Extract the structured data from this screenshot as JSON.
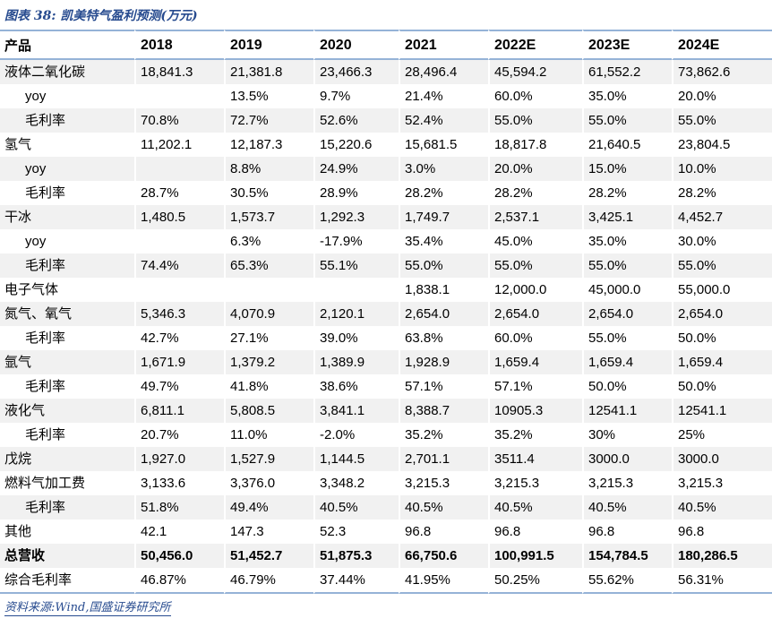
{
  "title": "图表 38: 凯美特气盈利预测(万元)",
  "table": {
    "columns": [
      "产品",
      "2018",
      "2019",
      "2020",
      "2021",
      "2022E",
      "2023E",
      "2024E"
    ],
    "rows": [
      {
        "label": "液体二氧化碳",
        "indent": 0,
        "bold": false,
        "values": [
          "18,841.3",
          "21,381.8",
          "23,466.3",
          "28,496.4",
          "45,594.2",
          "61,552.2",
          "73,862.6"
        ]
      },
      {
        "label": "yoy",
        "indent": 1,
        "bold": false,
        "values": [
          "",
          "13.5%",
          "9.7%",
          "21.4%",
          "60.0%",
          "35.0%",
          "20.0%"
        ]
      },
      {
        "label": "毛利率",
        "indent": 1,
        "bold": false,
        "values": [
          "70.8%",
          "72.7%",
          "52.6%",
          "52.4%",
          "55.0%",
          "55.0%",
          "55.0%"
        ]
      },
      {
        "label": "氢气",
        "indent": 0,
        "bold": false,
        "values": [
          "11,202.1",
          "12,187.3",
          "15,220.6",
          "15,681.5",
          "18,817.8",
          "21,640.5",
          "23,804.5"
        ]
      },
      {
        "label": "yoy",
        "indent": 1,
        "bold": false,
        "values": [
          "",
          "8.8%",
          "24.9%",
          "3.0%",
          "20.0%",
          "15.0%",
          "10.0%"
        ]
      },
      {
        "label": "毛利率",
        "indent": 1,
        "bold": false,
        "values": [
          "28.7%",
          "30.5%",
          "28.9%",
          "28.2%",
          "28.2%",
          "28.2%",
          "28.2%"
        ]
      },
      {
        "label": "干冰",
        "indent": 0,
        "bold": false,
        "values": [
          "1,480.5",
          "1,573.7",
          "1,292.3",
          "1,749.7",
          "2,537.1",
          "3,425.1",
          "4,452.7"
        ]
      },
      {
        "label": "yoy",
        "indent": 1,
        "bold": false,
        "values": [
          "",
          "6.3%",
          "-17.9%",
          "35.4%",
          "45.0%",
          "35.0%",
          "30.0%"
        ]
      },
      {
        "label": "毛利率",
        "indent": 1,
        "bold": false,
        "values": [
          "74.4%",
          "65.3%",
          "55.1%",
          "55.0%",
          "55.0%",
          "55.0%",
          "55.0%"
        ]
      },
      {
        "label": "电子气体",
        "indent": 0,
        "bold": false,
        "values": [
          "",
          "",
          "",
          "1,838.1",
          "12,000.0",
          "45,000.0",
          "55,000.0"
        ]
      },
      {
        "label": "氮气、氧气",
        "indent": 0,
        "bold": false,
        "values": [
          "5,346.3",
          "4,070.9",
          "2,120.1",
          "2,654.0",
          "2,654.0",
          "2,654.0",
          "2,654.0"
        ]
      },
      {
        "label": "毛利率",
        "indent": 1,
        "bold": false,
        "values": [
          "42.7%",
          "27.1%",
          "39.0%",
          "63.8%",
          "60.0%",
          "55.0%",
          "50.0%"
        ]
      },
      {
        "label": "氩气",
        "indent": 0,
        "bold": false,
        "values": [
          "1,671.9",
          "1,379.2",
          "1,389.9",
          "1,928.9",
          "1,659.4",
          "1,659.4",
          "1,659.4"
        ]
      },
      {
        "label": "毛利率",
        "indent": 1,
        "bold": false,
        "values": [
          "49.7%",
          "41.8%",
          "38.6%",
          "57.1%",
          "57.1%",
          "50.0%",
          "50.0%"
        ]
      },
      {
        "label": "液化气",
        "indent": 0,
        "bold": false,
        "values": [
          "6,811.1",
          "5,808.5",
          "3,841.1",
          "8,388.7",
          "10905.3",
          "12541.1",
          "12541.1"
        ]
      },
      {
        "label": "毛利率",
        "indent": 1,
        "bold": false,
        "values": [
          "20.7%",
          "11.0%",
          "-2.0%",
          "35.2%",
          "35.2%",
          "30%",
          "25%"
        ]
      },
      {
        "label": "戊烷",
        "indent": 0,
        "bold": false,
        "values": [
          "1,927.0",
          "1,527.9",
          "1,144.5",
          "2,701.1",
          "3511.4",
          "3000.0",
          "3000.0"
        ]
      },
      {
        "label": "燃料气加工费",
        "indent": 0,
        "bold": false,
        "values": [
          "3,133.6",
          "3,376.0",
          "3,348.2",
          "3,215.3",
          "3,215.3",
          "3,215.3",
          "3,215.3"
        ]
      },
      {
        "label": "毛利率",
        "indent": 1,
        "bold": false,
        "values": [
          "51.8%",
          "49.4%",
          "40.5%",
          "40.5%",
          "40.5%",
          "40.5%",
          "40.5%"
        ]
      },
      {
        "label": "其他",
        "indent": 0,
        "bold": false,
        "values": [
          "42.1",
          "147.3",
          "52.3",
          "96.8",
          "96.8",
          "96.8",
          "96.8"
        ]
      },
      {
        "label": "总营收",
        "indent": 0,
        "bold": true,
        "values": [
          "50,456.0",
          "51,452.7",
          "51,875.3",
          "66,750.6",
          "100,991.5",
          "154,784.5",
          "180,286.5"
        ]
      },
      {
        "label": "综合毛利率",
        "indent": 0,
        "bold": false,
        "values": [
          "46.87%",
          "46.79%",
          "37.44%",
          "41.95%",
          "50.25%",
          "55.62%",
          "56.31%"
        ]
      }
    ]
  },
  "source": "资料来源:Wind,国盛证券研究所",
  "colors": {
    "accent_blue": "#274B8F",
    "line_blue": "#95B3D7",
    "stripe_gray": "#F1F1F1"
  }
}
